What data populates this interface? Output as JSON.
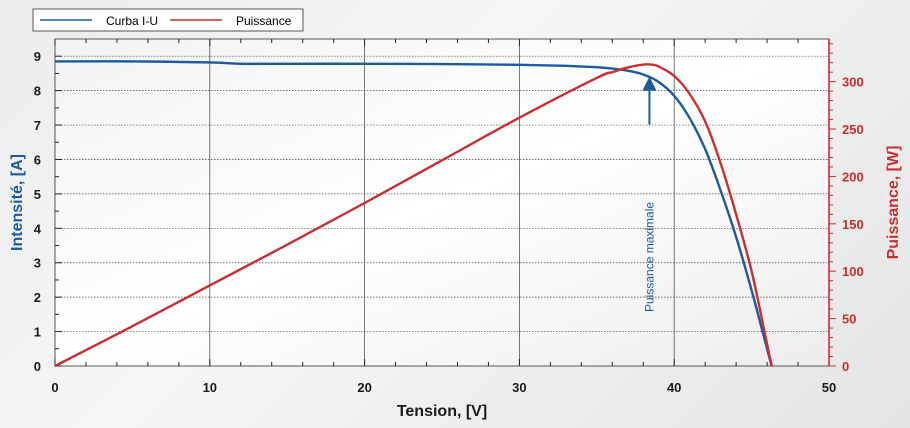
{
  "chart_data": {
    "type": "line",
    "xlabel": "Tension, [V]",
    "ylabel_left": "Intensité, [A]",
    "ylabel_right": "Puissance, [W]",
    "xlim": [
      0,
      50
    ],
    "ylim_left": [
      0,
      9.5
    ],
    "ylim_right": [
      0,
      345
    ],
    "x_ticks": [
      0,
      10,
      20,
      30,
      40,
      50
    ],
    "y_ticks_left": [
      0,
      1,
      2,
      3,
      4,
      5,
      6,
      7,
      8,
      9
    ],
    "y_ticks_right": [
      0,
      50,
      100,
      150,
      200,
      250,
      300
    ],
    "grid": true,
    "legend_position": "top-left",
    "colors": {
      "current": "#1a5aa0",
      "power": "#cc2e2e",
      "text": "#1a1a1a"
    },
    "series": [
      {
        "name": "Curba I-U",
        "axis": "left",
        "x": [
          0,
          5,
          10,
          12,
          15,
          20,
          25,
          30,
          33,
          35,
          36,
          37,
          38,
          39,
          40,
          41,
          42,
          43,
          44,
          45,
          46,
          46.3
        ],
        "y": [
          8.85,
          8.85,
          8.82,
          8.78,
          8.78,
          8.78,
          8.77,
          8.75,
          8.72,
          8.68,
          8.64,
          8.58,
          8.47,
          8.25,
          7.85,
          7.2,
          6.3,
          5.1,
          3.75,
          2.2,
          0.5,
          0
        ]
      },
      {
        "name": "Puissance",
        "axis": "right",
        "x": [
          0,
          5,
          10,
          15,
          20,
          25,
          30,
          35,
          36,
          37,
          38,
          38.5,
          39,
          40,
          41,
          42,
          43,
          44,
          45,
          46,
          46.3
        ],
        "y": [
          0,
          42,
          85,
          128,
          172,
          217,
          262,
          304,
          310,
          315,
          318,
          318,
          316,
          306,
          287,
          258,
          214,
          160,
          100,
          23,
          0
        ]
      }
    ],
    "annotations": [
      {
        "text": "Puissance maximale",
        "x": 38.4,
        "y_left": 8.35
      }
    ]
  }
}
